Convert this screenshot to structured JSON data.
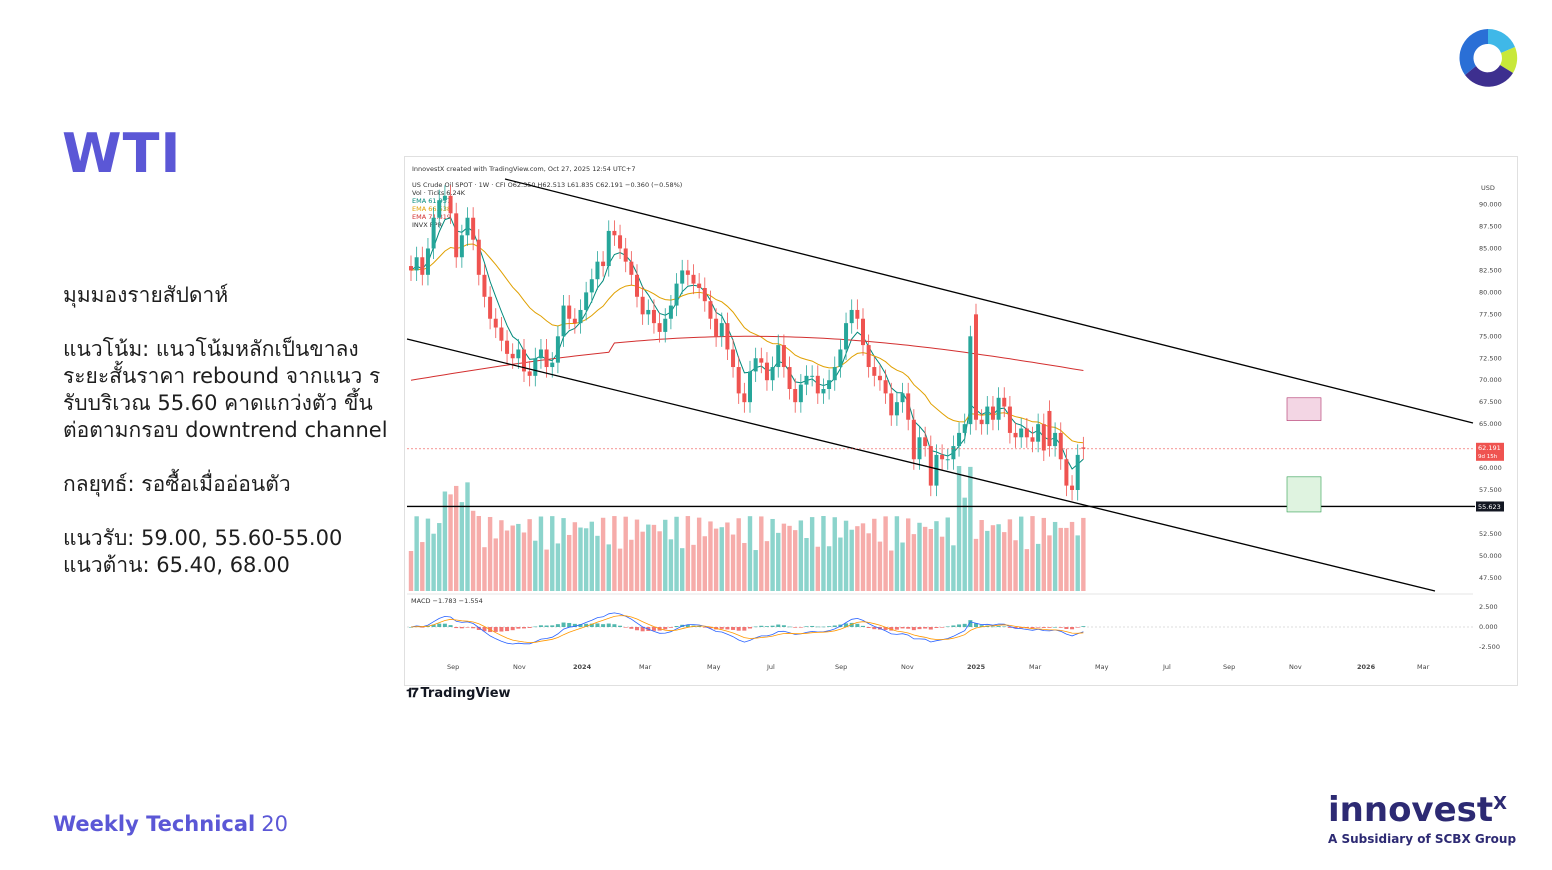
{
  "slide": {
    "title": "WTI",
    "paragraphs": [
      "มุมมองรายสัปดาห์",
      "แนวโน้ม: แนวโน้มหลักเป็นขาลง ระยะสั้นราคา rebound จากแนว รรับบริเวณ 55.60 คาดแกว่งตัว ขึ้นต่อตามกรอบ downtrend channel",
      "กลยุทธ์: รอซื้อเมื่ออ่อนตัว",
      "แนวรับ: 59.00, 55.60-55.00\nแนวต้าน: 65.40, 68.00"
    ],
    "footer_label": "Weekly Technical",
    "page_number": "20",
    "brand_name": "innovest",
    "brand_sup": "X",
    "brand_sub": "A Subsidiary of SCBX Group",
    "tradingview_label": "TradingView",
    "colors": {
      "accent": "#5b57d6",
      "brand": "#2d2a73",
      "up": "#26a69a",
      "down": "#ef5350"
    }
  },
  "chart_data": {
    "type": "candlestick",
    "header": "InnovestX created with TradingView.com, Oct 27, 2025 12:54 UTC+7",
    "symbol_line": "US Crude Oil SPOT · 1W · CFI  O62.350 H62.513 L61.835 C62.191 −0.360 (−0.58%)",
    "legend": [
      "Vol · Ticks 6.24K",
      "EMA 61.957",
      "EMA 66.538",
      "EMA 71.819",
      "INVX PPR"
    ],
    "macd_label": "MACD  −1.783  −1.554",
    "currency": "USD",
    "price_ticks": [
      "90.000",
      "87.500",
      "85.000",
      "82.500",
      "80.000",
      "77.500",
      "75.000",
      "72.500",
      "70.000",
      "67.500",
      "65.000",
      "60.000",
      "57.500",
      "52.500",
      "50.000",
      "47.500"
    ],
    "macd_ticks": [
      "2.500",
      "0.000",
      "-2.500"
    ],
    "time_labels": [
      "Sep",
      "Nov",
      "2024",
      "Mar",
      "May",
      "Jul",
      "Sep",
      "Nov",
      "2025",
      "Mar",
      "May",
      "Jul",
      "Sep",
      "Nov",
      "2026",
      "Mar"
    ],
    "last_price": "62.191",
    "last_sub": "9d 15h",
    "support_label": "55.623",
    "ylim": [
      46,
      92
    ],
    "closes": [
      82.5,
      84.0,
      82.0,
      85.0,
      88.5,
      90.5,
      91.0,
      89.0,
      84.0,
      86.5,
      88.5,
      86.0,
      82.0,
      79.5,
      77.0,
      76.0,
      74.5,
      73.0,
      72.5,
      73.5,
      71.0,
      70.5,
      72.5,
      73.5,
      71.5,
      72.0,
      75.0,
      78.5,
      77.0,
      76.5,
      78.0,
      80.0,
      81.5,
      83.5,
      83.0,
      87.0,
      86.5,
      85.0,
      83.5,
      82.0,
      79.5,
      77.5,
      78.0,
      76.5,
      75.5,
      77.0,
      78.5,
      81.0,
      82.5,
      82.0,
      81.0,
      80.5,
      79.0,
      77.0,
      75.0,
      76.5,
      73.5,
      71.5,
      68.5,
      67.5,
      71.0,
      72.5,
      72.0,
      70.0,
      71.5,
      74.0,
      71.5,
      69.0,
      67.5,
      69.5,
      70.5,
      70.5,
      68.5,
      69.0,
      70.0,
      71.5,
      73.5,
      76.5,
      78.0,
      77.0,
      74.0,
      71.5,
      70.5,
      70.0,
      68.5,
      66.0,
      67.5,
      68.5,
      65.5,
      61.0,
      63.5,
      62.5,
      58.0,
      61.5,
      61.0,
      61.0,
      62.5,
      64.0,
      65.0,
      75.0,
      65.5,
      65.0,
      67.0,
      65.5,
      68.0,
      67.0,
      64.0,
      63.5,
      64.5,
      63.5,
      63.0,
      65.0,
      62.0,
      62.5,
      64.0,
      61.0,
      58.0,
      57.5,
      61.5,
      62.2
    ],
    "opens": [
      83.0,
      82.5,
      84.0,
      82.0,
      85.0,
      88.5,
      90.5,
      91.0,
      89.0,
      84.0,
      86.5,
      88.5,
      86.0,
      82.0,
      79.5,
      77.0,
      76.0,
      74.5,
      73.0,
      72.5,
      73.5,
      71.0,
      70.5,
      72.5,
      73.5,
      71.5,
      72.0,
      75.0,
      78.5,
      77.0,
      76.5,
      78.0,
      80.0,
      81.5,
      83.5,
      83.0,
      87.0,
      86.5,
      85.0,
      83.5,
      82.0,
      79.5,
      77.5,
      78.0,
      76.5,
      75.5,
      77.0,
      78.5,
      81.0,
      82.5,
      82.0,
      81.0,
      80.5,
      79.0,
      77.0,
      75.0,
      76.5,
      73.5,
      71.5,
      68.5,
      67.5,
      71.0,
      72.5,
      72.0,
      70.0,
      71.5,
      74.0,
      71.5,
      69.0,
      67.5,
      69.5,
      70.5,
      70.5,
      68.5,
      69.0,
      70.0,
      71.5,
      73.5,
      76.5,
      78.0,
      77.0,
      74.0,
      71.5,
      70.5,
      70.0,
      68.5,
      66.0,
      67.5,
      68.5,
      65.5,
      61.0,
      63.5,
      62.5,
      58.0,
      61.5,
      61.0,
      61.0,
      62.5,
      64.0,
      65.0,
      77.5,
      65.5,
      65.0,
      67.0,
      65.5,
      68.0,
      67.0,
      64.0,
      63.5,
      64.5,
      63.5,
      63.0,
      65.0,
      66.5,
      62.5,
      64.0,
      61.0,
      58.0,
      57.5,
      62.35
    ]
  }
}
